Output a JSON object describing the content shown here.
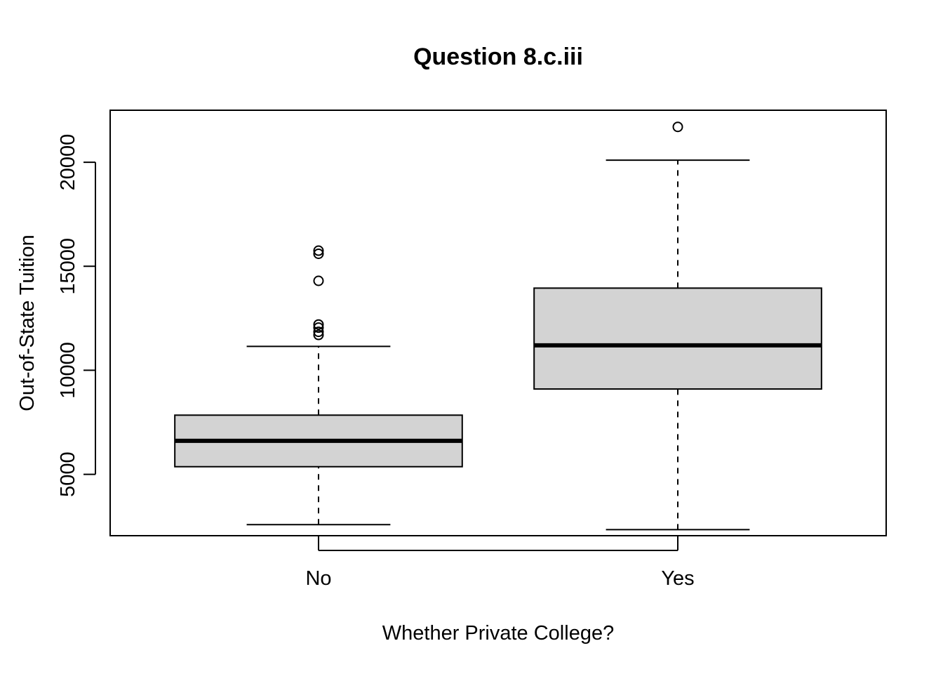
{
  "chart_data": {
    "type": "boxplot",
    "title": "Question 8.c.iii",
    "xlabel": "Whether Private College?",
    "ylabel": "Out-of-State Tuition",
    "ylim": [
      2050,
      22500
    ],
    "yticks": [
      5000,
      10000,
      15000,
      20000
    ],
    "grid": false,
    "box_fill": "#d3d3d3",
    "categories": [
      "No",
      "Yes"
    ],
    "boxes": [
      {
        "category": "No",
        "whisker_low": 2580,
        "q1": 5366,
        "median": 6609,
        "q3": 7844,
        "whisker_high": 11150,
        "outliers": [
          11700,
          11850,
          12050,
          12200,
          14300,
          15600,
          15750
        ]
      },
      {
        "category": "Yes",
        "whisker_low": 2340,
        "q1": 9100,
        "median": 11200,
        "q3": 13950,
        "whisker_high": 20100,
        "outliers": [
          21700
        ]
      }
    ]
  }
}
